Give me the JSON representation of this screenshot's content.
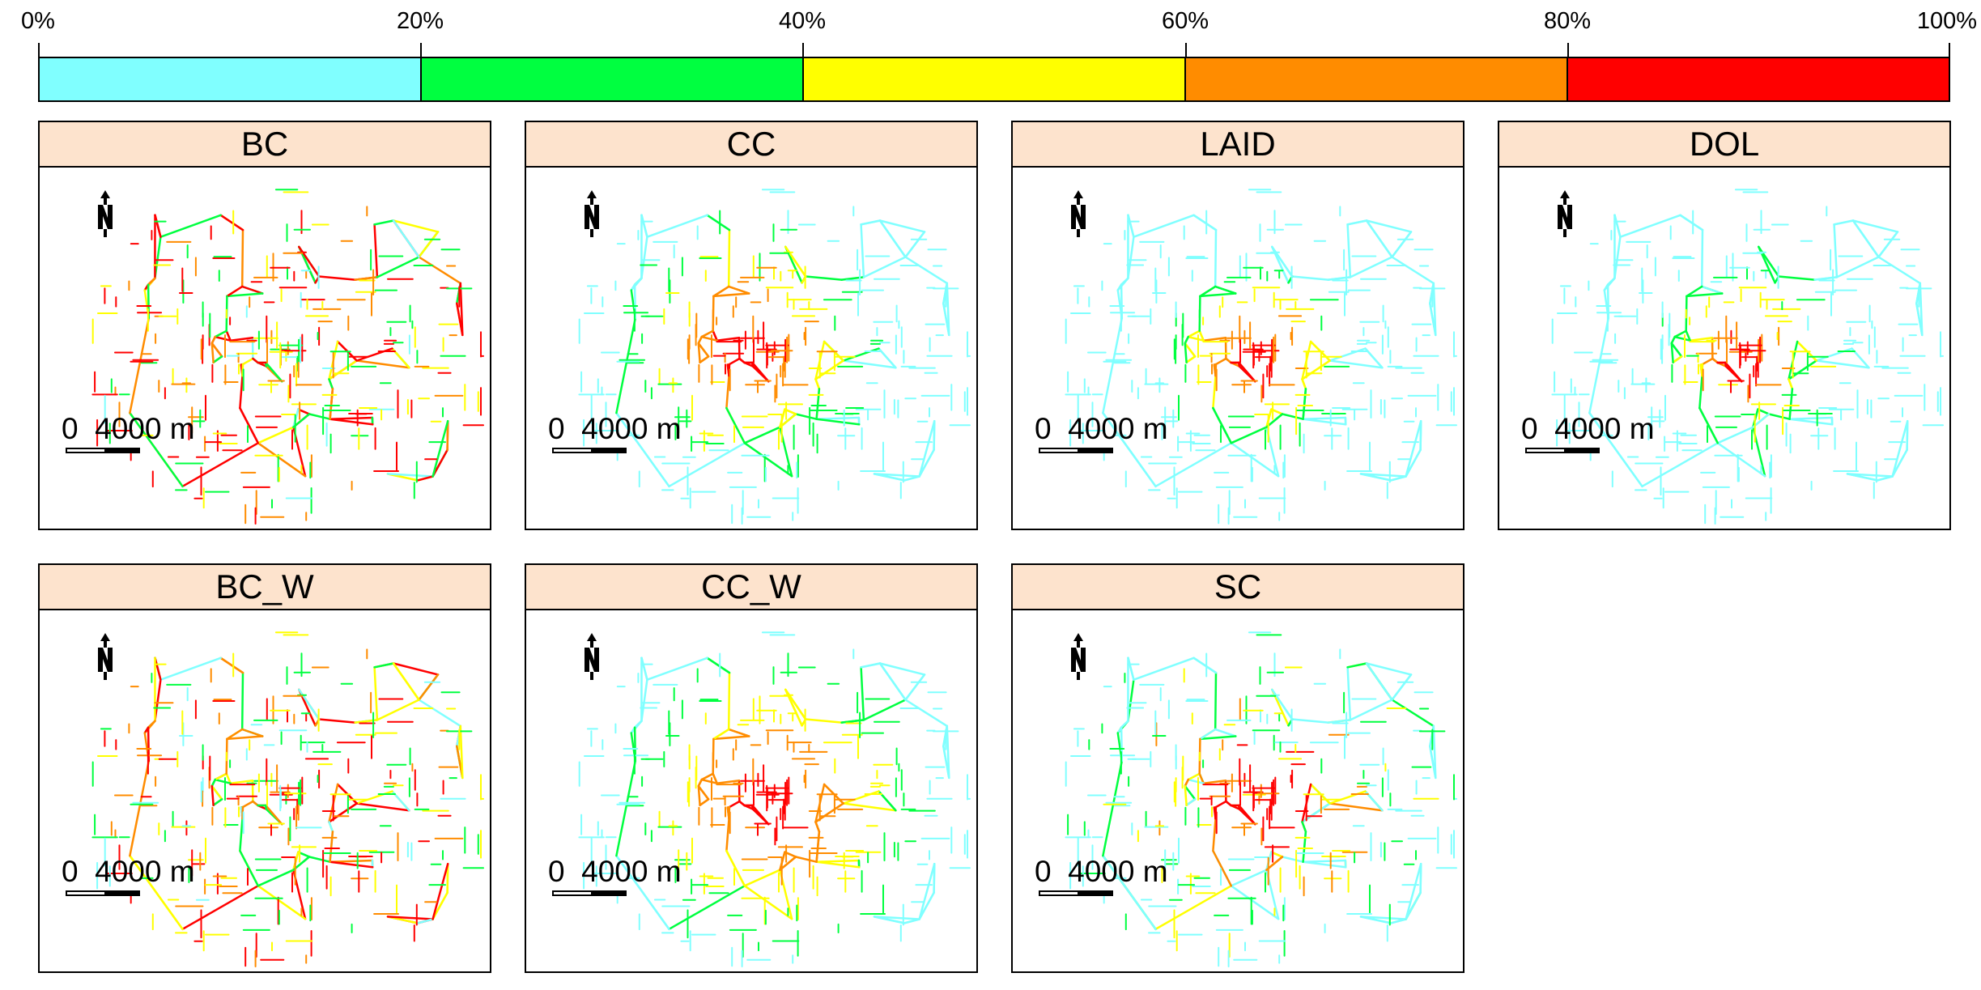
{
  "legend": {
    "ticks": [
      "0%",
      "20%",
      "40%",
      "60%",
      "80%",
      "100%"
    ],
    "colors": [
      "#80ffff",
      "#00ff40",
      "#ffff00",
      "#ff8c00",
      "#ff0000"
    ]
  },
  "road_colors": {
    "class_1": "#80ffff",
    "class_2": "#00ff40",
    "class_3": "#ffff00",
    "class_4": "#ff8c00",
    "class_5": "#ff0000"
  },
  "panels": [
    {
      "title": "BC",
      "pattern": "spread"
    },
    {
      "title": "CC",
      "pattern": "core-west"
    },
    {
      "title": "LAID",
      "pattern": "core"
    },
    {
      "title": "DOL",
      "pattern": "core-patchy"
    },
    {
      "title": "BC_W",
      "pattern": "spread-w"
    },
    {
      "title": "CC_W",
      "pattern": "core-wide"
    },
    {
      "title": "SC",
      "pattern": "mixed"
    }
  ],
  "north_label": "N",
  "scale_label": "0  4000 m"
}
